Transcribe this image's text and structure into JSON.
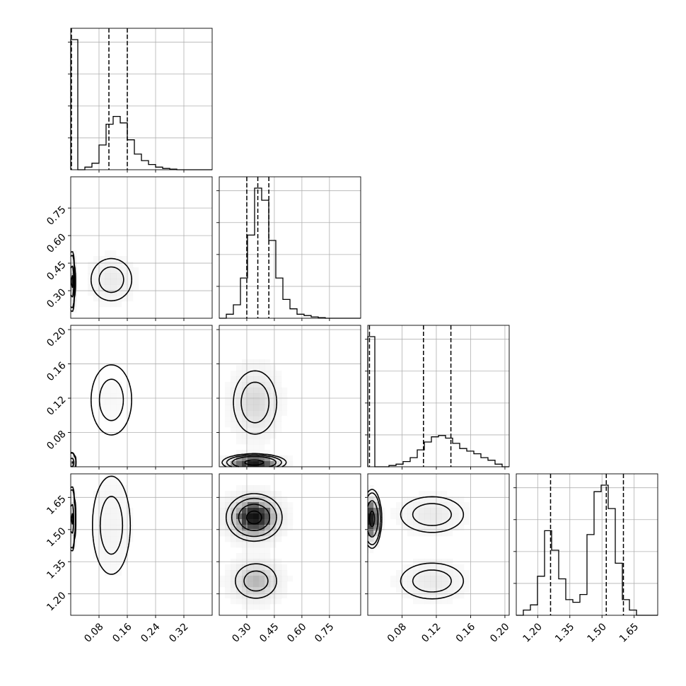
{
  "chart_data": {
    "type": "corner",
    "grid": true,
    "parameters": [
      {
        "range": [
          0.0,
          0.4
        ],
        "ticks": [
          0.08,
          0.16,
          0.24,
          0.32
        ],
        "tick_labels": [
          "0.08",
          "0.16",
          "0.24",
          "0.32"
        ],
        "quantiles": [
          0.002,
          0.108,
          0.16
        ]
      },
      {
        "range": [
          0.15,
          0.92
        ],
        "ticks": [
          0.3,
          0.45,
          0.6,
          0.75
        ],
        "tick_labels": [
          "0.30",
          "0.45",
          "0.60",
          "0.75"
        ],
        "quantiles": [
          0.3,
          0.36,
          0.42
        ]
      },
      {
        "range": [
          0.04,
          0.205
        ],
        "ticks": [
          0.08,
          0.12,
          0.16,
          0.2
        ],
        "tick_labels": [
          "0.08",
          "0.12",
          "0.16",
          "0.20"
        ],
        "quantiles": [
          0.042,
          0.105,
          0.137
        ]
      },
      {
        "range": [
          1.1,
          1.76
        ],
        "ticks": [
          1.2,
          1.35,
          1.5,
          1.65
        ],
        "tick_labels": [
          "1.20",
          "1.35",
          "1.50",
          "1.65"
        ],
        "quantiles": [
          1.26,
          1.52,
          1.6
        ]
      }
    ],
    "histograms": [
      {
        "bin_start": 0.0,
        "bin_width": 0.02,
        "counts": [
          1.0,
          0.0,
          0.02,
          0.05,
          0.19,
          0.35,
          0.41,
          0.36,
          0.23,
          0.12,
          0.07,
          0.04,
          0.02,
          0.01,
          0.005,
          0.0,
          0.0,
          0.0,
          0.0,
          0.0
        ]
      },
      {
        "bin_start": 0.15,
        "bin_width": 0.0385,
        "counts": [
          0.0,
          0.03,
          0.1,
          0.3,
          0.62,
          0.97,
          0.88,
          0.58,
          0.3,
          0.14,
          0.07,
          0.03,
          0.02,
          0.01,
          0.005,
          0.0,
          0.0,
          0.0,
          0.0,
          0.0
        ]
      },
      {
        "bin_start": 0.04,
        "bin_width": 0.00825,
        "counts": [
          1.0,
          0.0,
          0.0,
          0.01,
          0.02,
          0.04,
          0.07,
          0.13,
          0.19,
          0.23,
          0.24,
          0.22,
          0.18,
          0.14,
          0.12,
          0.1,
          0.07,
          0.05,
          0.02,
          0.0
        ]
      },
      {
        "bin_start": 1.1,
        "bin_width": 0.033,
        "counts": [
          0.0,
          0.04,
          0.08,
          0.3,
          0.65,
          0.5,
          0.28,
          0.12,
          0.1,
          0.16,
          0.62,
          0.95,
          1.0,
          0.82,
          0.4,
          0.12,
          0.04,
          0.0,
          0.0,
          0.0
        ]
      }
    ],
    "modes": [
      [
        {
          "weight": 0.5,
          "center": [
            0.003,
            0.35,
            0.045,
            1.55
          ],
          "sigma": [
            0.003,
            0.06,
            0.0035,
            0.05
          ]
        },
        {
          "weight": 0.5,
          "center": [
            0.115,
            0.36,
            0.118,
            1.52
          ],
          "sigma": [
            0.035,
            0.07,
            0.025,
            0.15
          ]
        }
      ],
      [
        {
          "weight": 0.5,
          "center": [
            0.003,
            0.34,
            0.045,
            1.55
          ],
          "sigma": [
            0.003,
            0.07,
            0.004,
            0.05
          ]
        },
        {
          "weight": 0.25,
          "center": [
            0.13,
            0.34,
            0.115,
            1.57
          ],
          "sigma": [
            0.035,
            0.07,
            0.022,
            0.05
          ]
        },
        {
          "weight": 0.25,
          "center": [
            0.115,
            0.35,
            0.115,
            1.26
          ],
          "sigma": [
            0.025,
            0.07,
            0.022,
            0.05
          ]
        }
      ]
    ]
  }
}
